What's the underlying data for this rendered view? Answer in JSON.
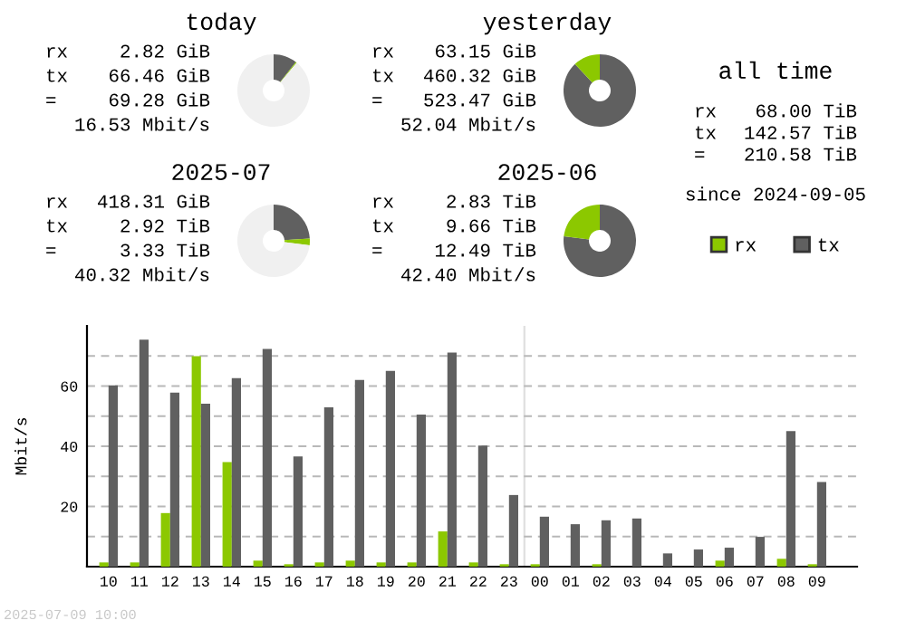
{
  "chart_data": [
    {
      "type": "donut",
      "title": "today",
      "annotations": [
        "rx 2.82 GiB",
        "tx 66.46 GiB",
        "= 69.28 GiB",
        "16.53 Mbit/s"
      ],
      "categories": [
        null,
        null,
        null
      ],
      "values": [
        10.5,
        0.5,
        89
      ],
      "colors": [
        "#606060",
        "#8cc800",
        "#f0f0f0"
      ]
    },
    {
      "type": "donut",
      "title": "yesterday",
      "annotations": [
        "rx 63.15 GiB",
        "tx 460.32 GiB",
        "= 523.47 GiB",
        "52.04 Mbit/s"
      ],
      "categories": [
        null,
        null
      ],
      "values": [
        88,
        12
      ],
      "colors": [
        "#606060",
        "#8cc800"
      ]
    },
    {
      "type": "other",
      "title": "all time",
      "annotations": [
        "rx 68.00 TiB",
        "tx 142.57 TiB",
        "= 210.58 TiB",
        "since 2024-09-05"
      ]
    },
    {
      "type": "donut",
      "title": "2025-07",
      "annotations": [
        "rx 418.31 GiB",
        "tx 2.92 TiB",
        "= 3.33 TiB",
        "40.32 Mbit/s"
      ],
      "categories": [
        null,
        null,
        null
      ],
      "values": [
        24,
        3,
        73
      ],
      "colors": [
        "#606060",
        "#8cc800",
        "#f0f0f0"
      ]
    },
    {
      "type": "donut",
      "title": "2025-06",
      "annotations": [
        "rx 2.83 TiB",
        "tx 9.66 TiB",
        "= 12.49 TiB",
        "42.40 Mbit/s"
      ],
      "categories": [
        null,
        null
      ],
      "values": [
        77,
        23
      ],
      "colors": [
        "#606060",
        "#8cc800"
      ]
    },
    {
      "type": "bar",
      "ylabel": "Mbit/s",
      "annotations": [
        "2025-07-09 10:00"
      ],
      "categories": [
        "10",
        "11",
        "12",
        "13",
        "14",
        "15",
        "16",
        "17",
        "18",
        "19",
        "20",
        "21",
        "22",
        "23",
        "00",
        "01",
        "02",
        "03",
        "04",
        "05",
        "06",
        "07",
        "08",
        "09"
      ],
      "series": [
        {
          "name": "rx",
          "color": "#8cc800",
          "values": [
            1.4,
            1.4,
            17.8,
            69.9,
            34.7,
            2,
            0.8,
            1.4,
            2,
            1.4,
            1.4,
            11.7,
            1.4,
            0.8,
            0.8,
            0,
            0.8,
            0,
            0,
            0,
            2,
            0,
            2.6,
            0.8
          ]
        },
        {
          "name": "tx",
          "color": "#606060",
          "values": [
            60.2,
            75.4,
            57.8,
            54.1,
            62.6,
            72.3,
            36.6,
            52.9,
            62,
            65,
            50.5,
            71.1,
            40.2,
            23.8,
            16.6,
            14.1,
            15.4,
            16,
            4.4,
            5.7,
            6.3,
            9.9,
            45,
            28.1
          ]
        }
      ],
      "ylim": [
        0,
        80
      ],
      "yticks": [
        {
          "value": 10,
          "label": null
        },
        20,
        {
          "value": 30,
          "label": null
        },
        40,
        {
          "value": 50,
          "label": null
        },
        60,
        {
          "value": 70,
          "label": null
        }
      ],
      "grid": "y",
      "legend": "top right",
      "ref_lines": [
        {
          "axis": "x",
          "value": "00",
          "label": null,
          "color": "#e0e0e0"
        }
      ]
    }
  ]
}
